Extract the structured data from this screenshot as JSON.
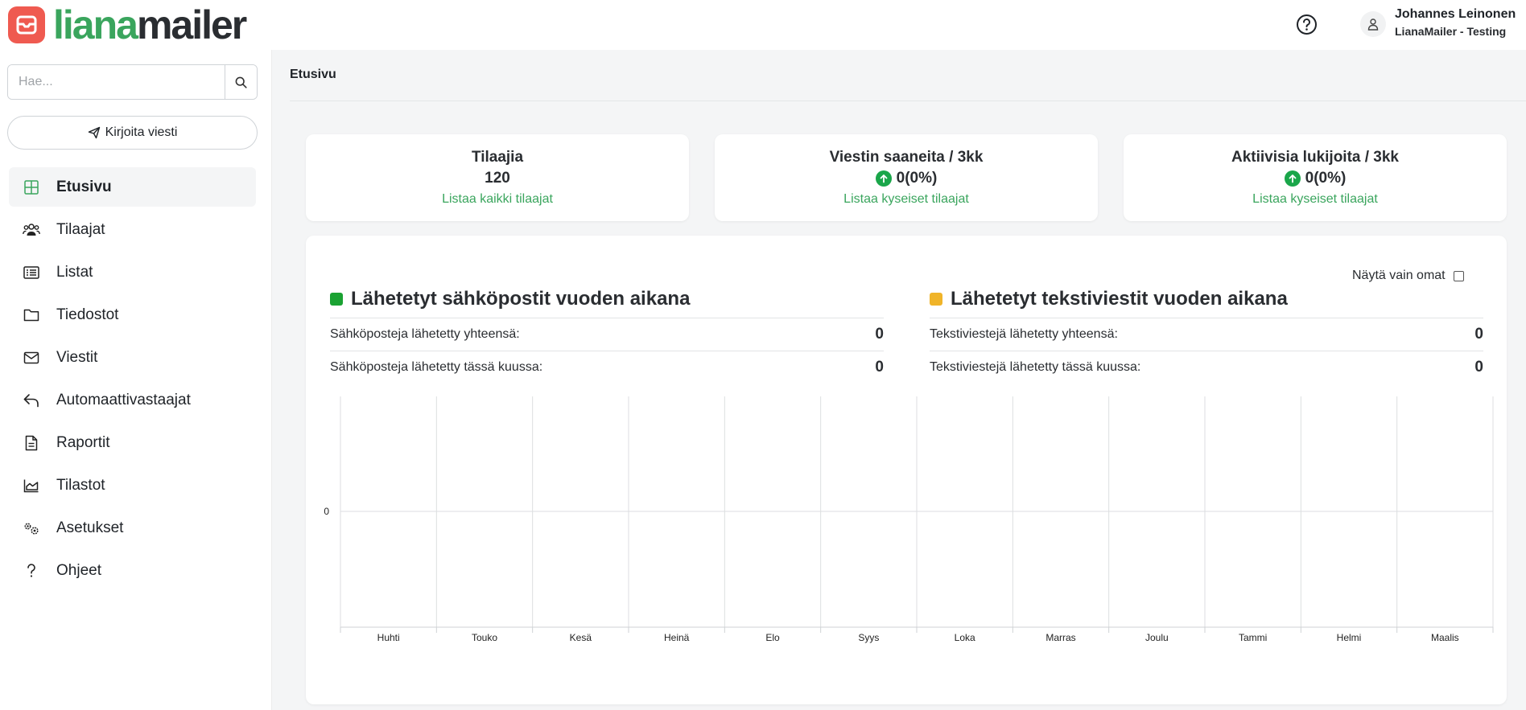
{
  "app": {
    "brand_part1": "liana",
    "brand_part2": "mailer"
  },
  "header": {
    "user_name": "Johannes Leinonen",
    "user_org": "LianaMailer - Testing"
  },
  "sidebar": {
    "search_placeholder": "Hae...",
    "compose_label": "Kirjoita viesti",
    "items": [
      {
        "label": "Etusivu",
        "icon": "dashboard-grid-icon",
        "active": true
      },
      {
        "label": "Tilaajat",
        "icon": "users-icon"
      },
      {
        "label": "Listat",
        "icon": "list-icon"
      },
      {
        "label": "Tiedostot",
        "icon": "folder-icon"
      },
      {
        "label": "Viestit",
        "icon": "envelope-icon"
      },
      {
        "label": "Automaattivastaajat",
        "icon": "reply-icon"
      },
      {
        "label": "Raportit",
        "icon": "document-icon"
      },
      {
        "label": "Tilastot",
        "icon": "area-chart-icon"
      },
      {
        "label": "Asetukset",
        "icon": "gears-icon"
      },
      {
        "label": "Ohjeet",
        "icon": "question-icon"
      }
    ]
  },
  "main": {
    "breadcrumb": "Etusivu",
    "stats": [
      {
        "title": "Tilaajia",
        "value": "120",
        "link": "Listaa kaikki tilaajat",
        "trend": false
      },
      {
        "title": "Viestin saaneita / 3kk",
        "value": "0(0%)",
        "link": "Listaa kyseiset tilaajat",
        "trend": true
      },
      {
        "title": "Aktiivisia lukijoita / 3kk",
        "value": "0(0%)",
        "link": "Listaa kyseiset tilaajat",
        "trend": true
      }
    ],
    "own_only_label": "Näytä vain omat",
    "email_section": {
      "title": "Lähetetyt sähköpostit vuoden aikana",
      "color": "#1aa232",
      "total_label": "Sähköposteja lähetetty yhteensä:",
      "total_value": "0",
      "month_label": "Sähköposteja lähetetty tässä kuussa:",
      "month_value": "0"
    },
    "sms_section": {
      "title": "Lähetetyt tekstiviestit vuoden aikana",
      "color": "#f0b429",
      "total_label": "Tekstiviestejä lähetetty yhteensä:",
      "total_value": "0",
      "month_label": "Tekstiviestejä lähetetty tässä kuussa:",
      "month_value": "0"
    }
  },
  "chart_data": {
    "type": "bar",
    "categories": [
      "Huhti",
      "Touko",
      "Kesä",
      "Heinä",
      "Elo",
      "Syys",
      "Loka",
      "Marras",
      "Joulu",
      "Tammi",
      "Helmi",
      "Maalis"
    ],
    "series": [
      {
        "values": [
          0,
          0,
          0,
          0,
          0,
          0,
          0,
          0,
          0,
          0,
          0,
          0
        ],
        "color": "#1aa232"
      },
      {
        "values": [
          0,
          0,
          0,
          0,
          0,
          0,
          0,
          0,
          0,
          0,
          0,
          0
        ],
        "color": "#f0b429"
      }
    ],
    "yticks": [
      "0"
    ],
    "grid": true
  }
}
